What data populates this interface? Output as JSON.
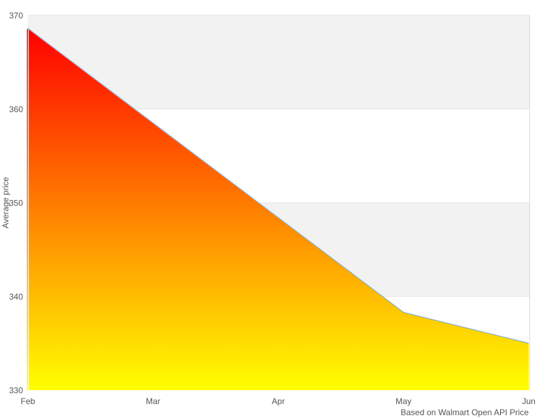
{
  "chart": {
    "y_axis_title": "Average price",
    "caption": "Based on Walmart Open API Price"
  },
  "chart_data": {
    "type": "area",
    "title": "",
    "xlabel": "",
    "ylabel": "Average price",
    "caption": "Based on Walmart Open API Price",
    "categories": [
      "Feb",
      "Mar",
      "Apr",
      "May",
      "Jun"
    ],
    "series": [
      {
        "name": "Average price",
        "values": [
          368.6,
          358.5,
          348.4,
          338.3,
          335.0
        ]
      }
    ],
    "ylim": [
      330,
      370
    ],
    "yticks": [
      330,
      340,
      350,
      360,
      370
    ],
    "plot_bands": [
      [
        360,
        370
      ],
      [
        340,
        350
      ]
    ],
    "grid": "horizontal",
    "legend": "none",
    "colors": {
      "area_gradient_top": "#ff0000",
      "area_gradient_bottom": "#ffff00",
      "line": "#86afd2",
      "band_fill": "#f2f2f2",
      "gridline": "#e6e6e6",
      "plot_border": "#d9d9d9",
      "axis_line": "#ffffff",
      "text": "#555555",
      "background": "#ffffff"
    }
  }
}
